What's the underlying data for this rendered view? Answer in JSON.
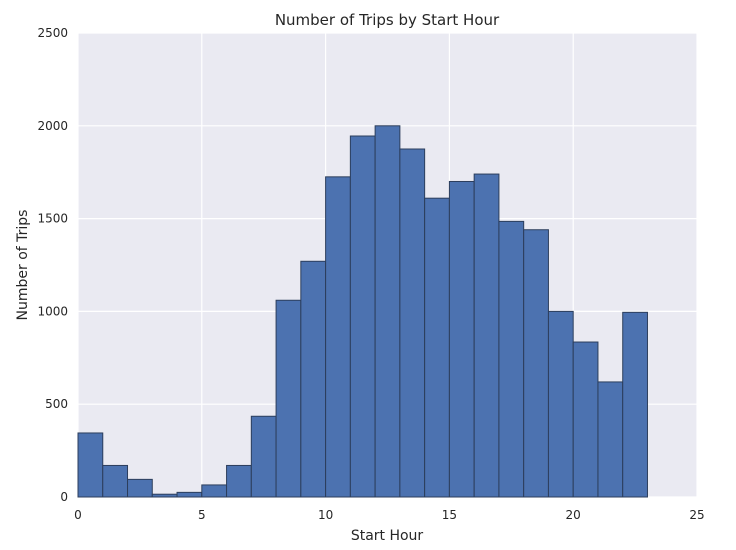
{
  "chart_data": {
    "type": "bar",
    "title": "Number of Trips by Start Hour",
    "xlabel": "Start Hour",
    "ylabel": "Number of Trips",
    "xlim": [
      0,
      25
    ],
    "ylim": [
      0,
      2500
    ],
    "xticks": [
      0,
      5,
      10,
      15,
      20,
      25
    ],
    "yticks": [
      0,
      500,
      1000,
      1500,
      2000,
      2500
    ],
    "grid": true,
    "bin_edges": [
      0,
      1,
      2,
      3,
      4,
      5,
      6,
      7,
      8,
      9,
      10,
      11,
      12,
      13,
      14,
      15,
      16,
      17,
      18,
      19,
      20,
      21,
      22,
      23
    ],
    "values": [
      345,
      170,
      95,
      15,
      25,
      65,
      170,
      435,
      1060,
      1270,
      1725,
      1945,
      2000,
      1875,
      1610,
      1700,
      1740,
      1485,
      1440,
      1000,
      835,
      620,
      995
    ]
  },
  "colors": {
    "bar_fill": "#4c72b0",
    "plot_background": "#eaeaf2",
    "grid": "#ffffff"
  }
}
